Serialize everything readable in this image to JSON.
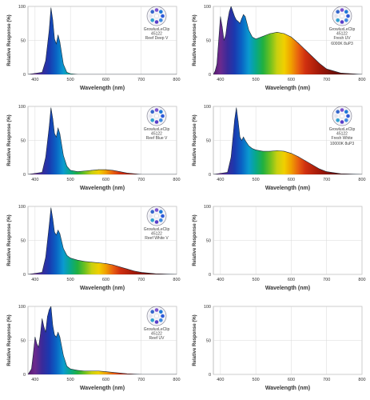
{
  "chart_data": [
    {
      "type": "area",
      "xlabel": "Wavelength (nm)",
      "ylabel": "Relative Response (%)",
      "xlim": [
        380,
        800
      ],
      "ylim": [
        0,
        100
      ],
      "xticks": [
        400,
        500,
        600,
        700,
        800
      ],
      "yticks": [
        0,
        50,
        100
      ],
      "labels": [
        "GrowluxLeClip",
        "45122",
        "Reef Deep V"
      ],
      "logo": "led-cluster-icon",
      "series": [
        {
          "x": [
            380,
            420,
            430,
            440,
            445,
            450,
            455,
            460,
            465,
            470,
            480,
            490,
            500,
            520,
            800
          ],
          "y": [
            0,
            3,
            20,
            65,
            98,
            80,
            52,
            45,
            58,
            48,
            15,
            3,
            1,
            0,
            0
          ]
        }
      ]
    },
    {
      "type": "area",
      "xlabel": "Wavelength (nm)",
      "ylabel": "Relative Response (%)",
      "xlim": [
        380,
        800
      ],
      "ylim": [
        0,
        100
      ],
      "xticks": [
        400,
        500,
        600,
        700,
        800
      ],
      "yticks": [
        0,
        50,
        100
      ],
      "labels": [
        "GrowluxLeClip",
        "45122",
        "Fresh UV",
        "6000K 8uP3"
      ],
      "logo": "led-cluster-icon",
      "series": [
        {
          "x": [
            380,
            385,
            390,
            395,
            400,
            405,
            410,
            415,
            420,
            425,
            430,
            440,
            445,
            450,
            455,
            460,
            465,
            470,
            480,
            490,
            500,
            520,
            540,
            560,
            580,
            600,
            620,
            640,
            660,
            680,
            700,
            740,
            800
          ],
          "y": [
            0,
            5,
            15,
            50,
            85,
            70,
            50,
            58,
            78,
            92,
            100,
            85,
            80,
            78,
            75,
            82,
            88,
            85,
            65,
            55,
            52,
            56,
            60,
            62,
            60,
            55,
            46,
            36,
            26,
            16,
            8,
            2,
            0
          ]
        }
      ]
    },
    {
      "type": "area",
      "xlabel": "Wavelength (nm)",
      "ylabel": "Relative Response (%)",
      "xlim": [
        380,
        800
      ],
      "ylim": [
        0,
        100
      ],
      "xticks": [
        400,
        500,
        600,
        700,
        800
      ],
      "yticks": [
        0,
        50,
        100
      ],
      "labels": [
        "GrowluxLeClip",
        "45122",
        "Reef Blue V"
      ],
      "logo": "led-cluster-icon",
      "series": [
        {
          "x": [
            380,
            420,
            430,
            440,
            445,
            450,
            455,
            460,
            465,
            470,
            480,
            490,
            500,
            520,
            540,
            560,
            580,
            600,
            620,
            640,
            660,
            680,
            700,
            800
          ],
          "y": [
            0,
            3,
            25,
            70,
            98,
            82,
            60,
            55,
            68,
            60,
            28,
            12,
            6,
            4,
            5,
            6,
            7,
            7,
            6,
            4,
            2,
            1,
            0,
            0
          ]
        }
      ]
    },
    {
      "type": "area",
      "xlabel": "Wavelength (nm)",
      "ylabel": "Relative Response (%)",
      "xlim": [
        380,
        800
      ],
      "ylim": [
        0,
        100
      ],
      "xticks": [
        400,
        500,
        600,
        700,
        800
      ],
      "yticks": [
        0,
        50,
        100
      ],
      "labels": [
        "GrowluxLeClip",
        "45122",
        "Fresh White",
        "10000K 8uP3"
      ],
      "logo": "led-cluster-icon",
      "series": [
        {
          "x": [
            380,
            420,
            430,
            440,
            445,
            450,
            455,
            460,
            465,
            470,
            480,
            490,
            500,
            520,
            540,
            560,
            580,
            600,
            620,
            640,
            660,
            680,
            700,
            740,
            800
          ],
          "y": [
            0,
            3,
            25,
            80,
            98,
            78,
            55,
            50,
            55,
            50,
            42,
            38,
            36,
            34,
            34,
            35,
            34,
            31,
            26,
            20,
            14,
            8,
            4,
            1,
            0
          ]
        }
      ]
    },
    {
      "type": "area",
      "xlabel": "Wavelength (nm)",
      "ylabel": "Relative Response (%)",
      "xlim": [
        380,
        800
      ],
      "ylim": [
        0,
        100
      ],
      "xticks": [
        400,
        500,
        600,
        700,
        800
      ],
      "yticks": [
        0,
        50,
        100
      ],
      "labels": [
        "GrowluxLeClip",
        "45122",
        "Reef White V"
      ],
      "logo": "led-cluster-icon",
      "series": [
        {
          "x": [
            380,
            420,
            430,
            440,
            445,
            450,
            455,
            460,
            465,
            470,
            480,
            490,
            500,
            520,
            540,
            560,
            580,
            600,
            620,
            640,
            660,
            680,
            700,
            740,
            800
          ],
          "y": [
            0,
            3,
            25,
            72,
            98,
            82,
            62,
            58,
            65,
            60,
            38,
            28,
            24,
            21,
            19,
            18,
            17,
            16,
            14,
            11,
            8,
            5,
            3,
            1,
            0
          ]
        }
      ]
    },
    {
      "type": "area",
      "xlabel": "Wavelength (nm)",
      "ylabel": "Relative Response (%)",
      "xlim": [
        380,
        800
      ],
      "ylim": [
        0,
        100
      ],
      "xticks": [
        400,
        500,
        600,
        700,
        800
      ],
      "yticks": [
        0,
        50,
        100
      ],
      "labels": [],
      "logo": "",
      "series": []
    },
    {
      "type": "area",
      "xlabel": "Wavelength (nm)",
      "ylabel": "Relative Response (%)",
      "xlim": [
        380,
        800
      ],
      "ylim": [
        0,
        100
      ],
      "xticks": [
        400,
        500,
        600,
        700,
        800
      ],
      "yticks": [
        0,
        50,
        100
      ],
      "labels": [
        "GrowluxLeClip",
        "45122",
        "Reef UV"
      ],
      "logo": "led-cluster-icon",
      "series": [
        {
          "x": [
            380,
            390,
            395,
            400,
            405,
            410,
            415,
            420,
            425,
            430,
            435,
            440,
            445,
            450,
            455,
            460,
            465,
            470,
            480,
            490,
            500,
            520,
            540,
            560,
            580,
            600,
            620,
            640,
            660,
            700,
            800
          ],
          "y": [
            0,
            8,
            30,
            55,
            45,
            40,
            58,
            82,
            70,
            62,
            85,
            95,
            100,
            72,
            58,
            55,
            62,
            55,
            28,
            12,
            8,
            6,
            5,
            5,
            5,
            4,
            3,
            2,
            1,
            0,
            0
          ]
        }
      ]
    },
    {
      "type": "area",
      "xlabel": "Wavelength (nm)",
      "ylabel": "Relative Response (%)",
      "xlim": [
        380,
        800
      ],
      "ylim": [
        0,
        100
      ],
      "xticks": [
        400,
        500,
        600,
        700,
        800
      ],
      "yticks": [
        0,
        50,
        100
      ],
      "labels": [],
      "logo": "",
      "series": []
    }
  ]
}
